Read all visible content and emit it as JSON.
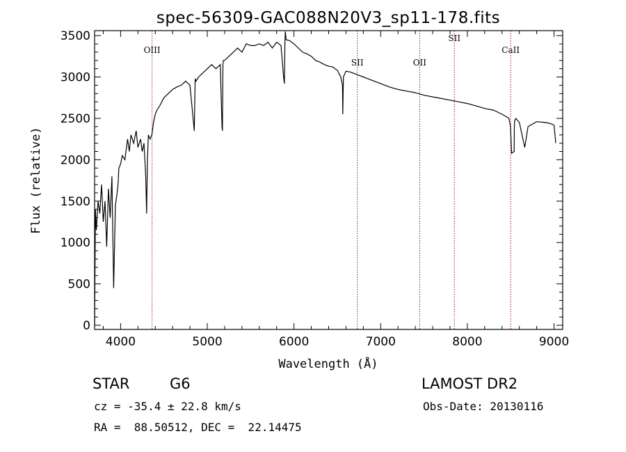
{
  "chart_data": {
    "type": "line",
    "title": "spec-56309-GAC088N20V3_sp11-178.fits",
    "xlabel": "Wavelength (Å)",
    "ylabel": "Flux (relative)",
    "xlim": [
      3700,
      9100
    ],
    "ylim": [
      -50,
      3560
    ],
    "xticks": [
      4000,
      5000,
      6000,
      7000,
      8000,
      9000
    ],
    "yticks": [
      0,
      500,
      1000,
      1500,
      2000,
      2500,
      3000,
      3500
    ],
    "series": [
      {
        "x": [
          3700,
          3710,
          3720,
          3740,
          3760,
          3780,
          3800,
          3820,
          3840,
          3860,
          3880,
          3900,
          3920,
          3940,
          3960,
          3970,
          3980,
          4000,
          4020,
          4050,
          4080,
          4100,
          4120,
          4150,
          4180,
          4200,
          4230,
          4250,
          4270,
          4290,
          4300,
          4310,
          4320,
          4340,
          4360,
          4380,
          4400,
          4420,
          4450,
          4500,
          4550,
          4600,
          4650,
          4700,
          4750,
          4800,
          4850,
          4860,
          4870,
          4900,
          4950,
          5000,
          5050,
          5100,
          5150,
          5170,
          5175,
          5180,
          5185,
          5200,
          5250,
          5300,
          5350,
          5400,
          5450,
          5500,
          5550,
          5600,
          5650,
          5700,
          5750,
          5800,
          5850,
          5880,
          5890,
          5895,
          5900,
          5910,
          5950,
          6000,
          6050,
          6100,
          6150,
          6200,
          6250,
          6300,
          6350,
          6400,
          6450,
          6500,
          6540,
          6560,
          6563,
          6570,
          6600,
          6650,
          6700,
          6750,
          6800,
          6850,
          6900,
          6950,
          7000,
          7100,
          7200,
          7300,
          7400,
          7500,
          7600,
          7700,
          7800,
          7900,
          8000,
          8100,
          8200,
          8300,
          8400,
          8450,
          8480,
          8498,
          8510,
          8540,
          8542,
          8545,
          8560,
          8600,
          8662,
          8670,
          8700,
          8800,
          8900,
          8950,
          9000,
          9020
        ],
        "y": [
          0,
          1400,
          1150,
          1500,
          1350,
          1700,
          1250,
          1500,
          950,
          1650,
          1300,
          1800,
          450,
          1450,
          1600,
          1700,
          1900,
          1950,
          2050,
          2000,
          2250,
          2100,
          2300,
          2200,
          2350,
          2150,
          2250,
          2100,
          2200,
          1800,
          1350,
          2000,
          2300,
          2250,
          2300,
          2450,
          2550,
          2600,
          2650,
          2750,
          2800,
          2850,
          2880,
          2900,
          2950,
          2900,
          2350,
          2980,
          2950,
          3000,
          3050,
          3100,
          3150,
          3100,
          3150,
          2400,
          2350,
          3150,
          3200,
          3200,
          3250,
          3300,
          3350,
          3300,
          3400,
          3380,
          3380,
          3400,
          3380,
          3420,
          3350,
          3420,
          3380,
          3000,
          2920,
          3400,
          3550,
          3450,
          3440,
          3400,
          3350,
          3300,
          3280,
          3250,
          3200,
          3180,
          3150,
          3130,
          3120,
          3080,
          3000,
          2900,
          2550,
          3000,
          3070,
          3060,
          3040,
          3020,
          3000,
          2980,
          2960,
          2940,
          2920,
          2880,
          2850,
          2830,
          2810,
          2780,
          2760,
          2740,
          2720,
          2700,
          2680,
          2650,
          2620,
          2600,
          2550,
          2520,
          2500,
          2400,
          2080,
          2100,
          2400,
          2470,
          2500,
          2450,
          2150,
          2200,
          2400,
          2460,
          2450,
          2440,
          2420,
          2200
        ]
      }
    ],
    "line_markers": [
      {
        "label": "OIII",
        "x": 4363
      },
      {
        "label": "SII",
        "x": 6731
      },
      {
        "label": "OII",
        "x": 7450
      },
      {
        "label": "SII",
        "x": 7850
      },
      {
        "label": "CaII",
        "x": 8500
      }
    ]
  },
  "info": {
    "object_type": "STAR",
    "subclass": "G6",
    "survey": "LAMOST DR2",
    "cz_line": "cz = -35.4 ± 22.8 km/s",
    "obs_date": "Obs-Date: 20130116",
    "coords": "RA =  88.50512, DEC =  22.14475"
  }
}
